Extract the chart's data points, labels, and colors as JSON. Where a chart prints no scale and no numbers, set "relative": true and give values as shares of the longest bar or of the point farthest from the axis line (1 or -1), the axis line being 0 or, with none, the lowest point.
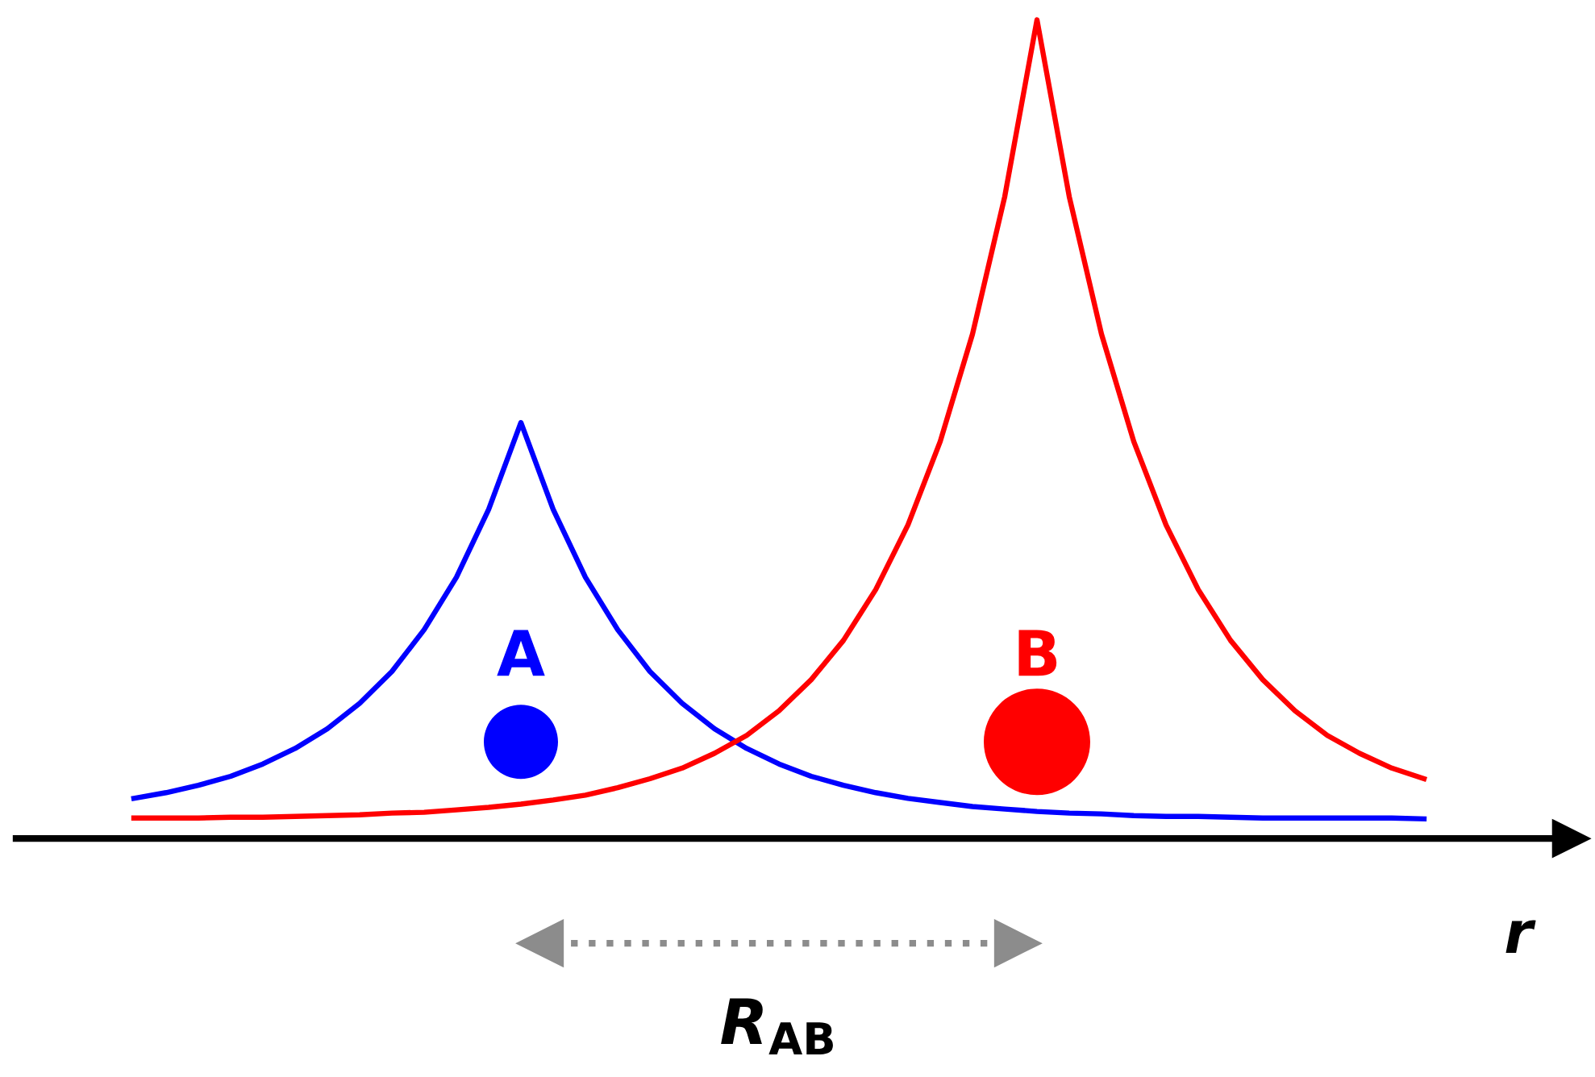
{
  "chart_data": {
    "type": "line",
    "relative": true,
    "xlabel": "r",
    "grid": false,
    "legend": false,
    "marker": "none",
    "line_style": "solid",
    "categories": [
      null,
      null,
      null,
      null,
      null,
      null,
      null,
      null,
      null,
      null,
      null,
      null,
      null,
      null,
      null,
      null,
      null,
      null,
      null,
      null,
      null,
      null,
      null,
      null,
      null,
      null,
      null,
      null,
      null,
      null,
      null,
      null,
      null,
      null,
      null,
      null,
      null,
      null,
      null,
      null,
      null
    ],
    "series": [
      {
        "color": "#0000ff",
        "values": [
          0.049,
          0.056,
          0.065,
          0.076,
          0.091,
          0.11,
          0.134,
          0.165,
          0.204,
          0.255,
          0.319,
          0.402,
          0.508,
          0.402,
          0.319,
          0.255,
          0.204,
          0.165,
          0.134,
          0.11,
          0.091,
          0.076,
          0.065,
          0.056,
          0.049,
          0.044,
          0.039,
          0.036,
          0.033,
          0.031,
          0.03,
          0.028,
          0.027,
          0.027,
          0.026,
          0.025,
          0.025,
          0.025,
          0.025,
          0.025,
          0.024
        ]
      },
      {
        "color": "#ff0000",
        "values": [
          0.025,
          0.025,
          0.025,
          0.026,
          0.026,
          0.027,
          0.028,
          0.029,
          0.031,
          0.032,
          0.035,
          0.038,
          0.042,
          0.047,
          0.053,
          0.062,
          0.073,
          0.086,
          0.104,
          0.126,
          0.156,
          0.194,
          0.242,
          0.304,
          0.383,
          0.485,
          0.616,
          0.784,
          1.0,
          0.784,
          0.616,
          0.485,
          0.383,
          0.304,
          0.242,
          0.194,
          0.156,
          0.126,
          0.104,
          0.086,
          0.073
        ]
      }
    ],
    "annotations": [
      "A",
      "B",
      "R$_{AB}$"
    ]
  }
}
